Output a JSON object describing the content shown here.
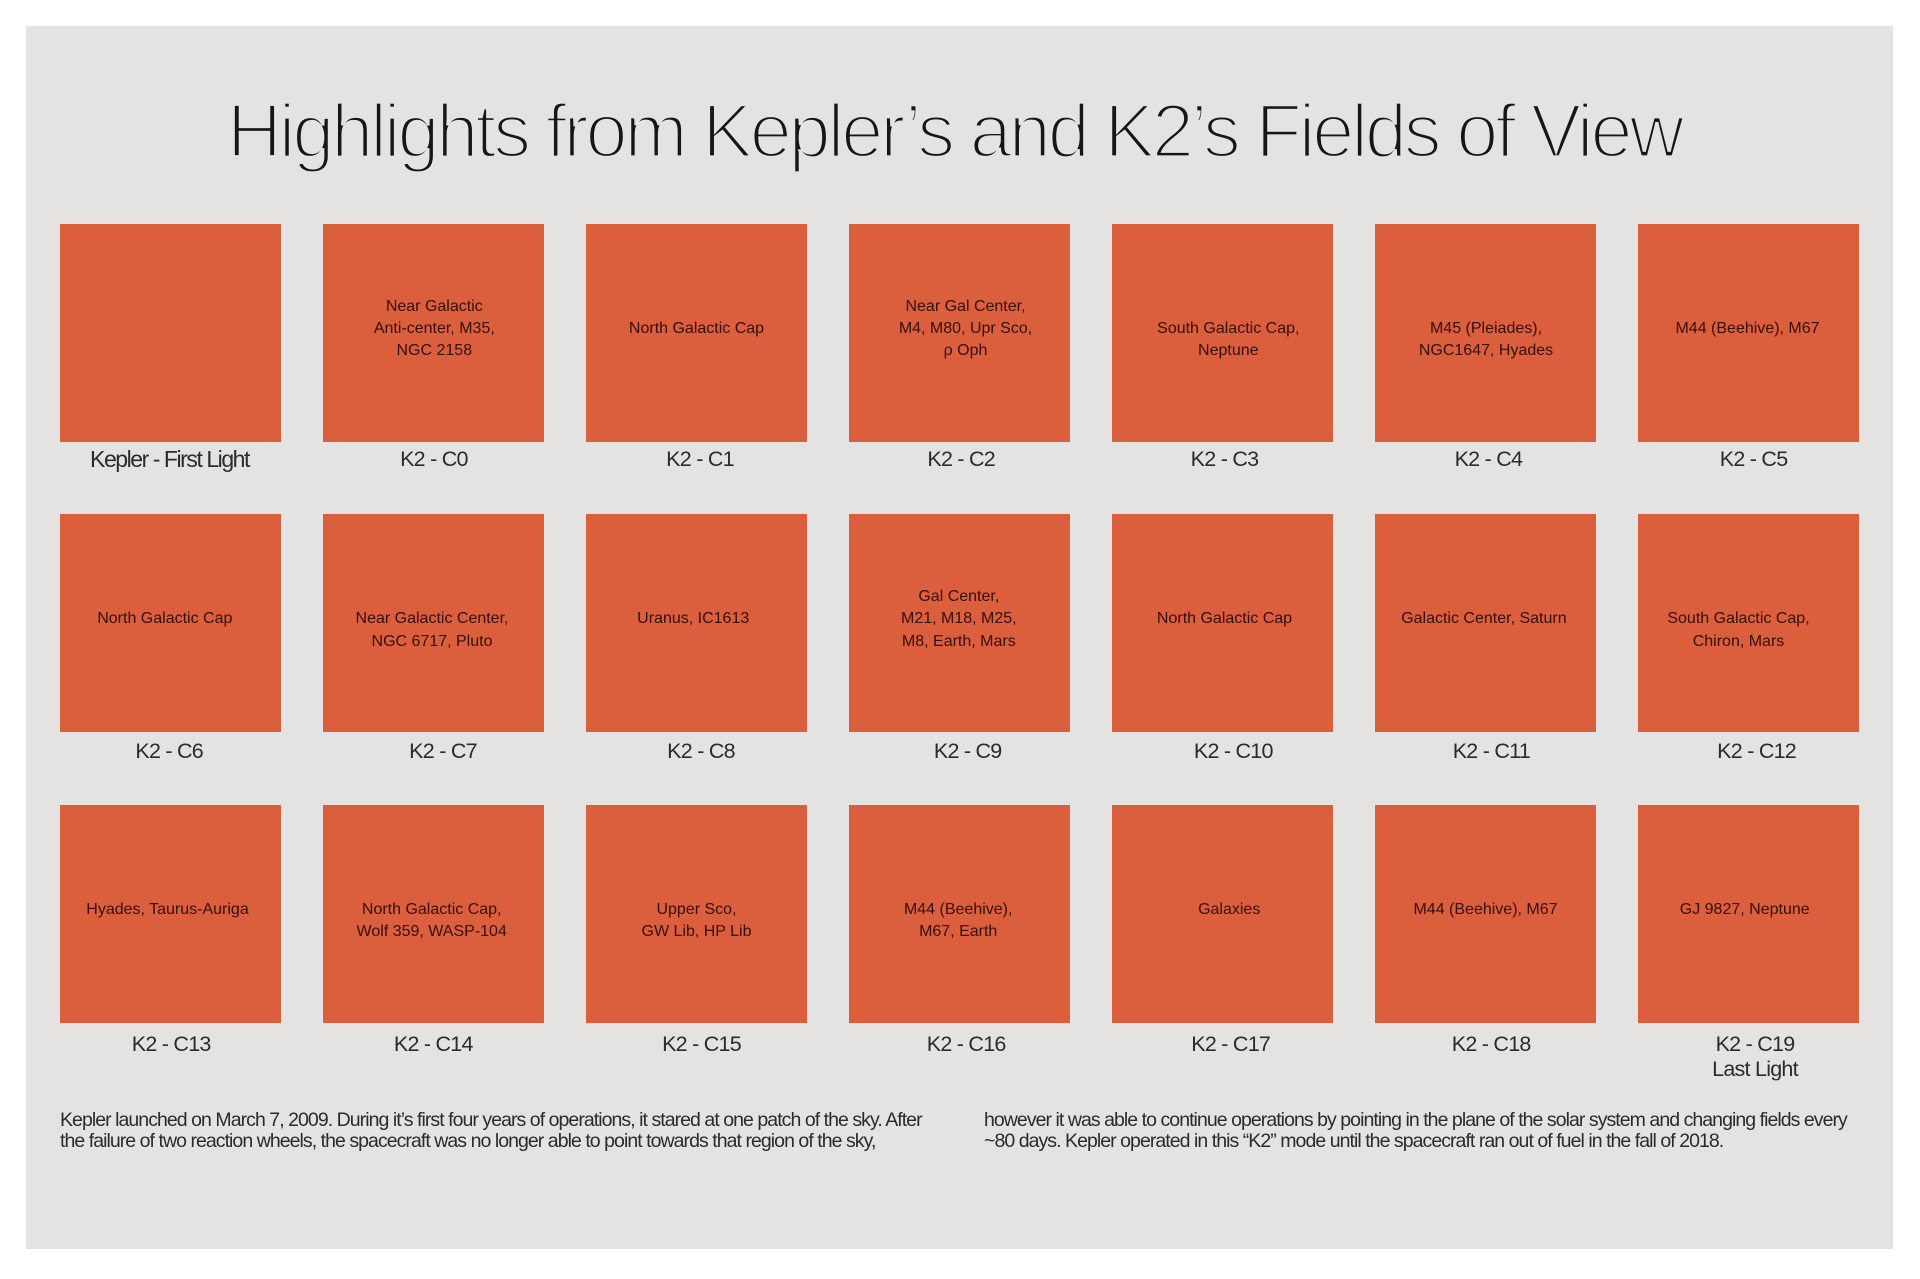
{
  "title": "Highlights from Kepler’s and K2’s Fields of View",
  "colors": {
    "page_background": "#ffffff",
    "panel_background": "#e4e3e2",
    "square_fill": "#dc5f3d",
    "square_text": "#350e06",
    "caption_text": "#2b2b2b",
    "footer_text": "#2b2b2b",
    "title_text": "#161616"
  },
  "grid": {
    "cells": [
      {
        "caption": "Kepler - First Light",
        "lines": []
      },
      {
        "caption": "K2 - C0",
        "lines": [
          "Near Galactic",
          "Anti-center, M35,",
          "NGC 2158"
        ]
      },
      {
        "caption": "K2 - C1",
        "lines": [
          "North Galactic Cap"
        ]
      },
      {
        "caption": "K2 - C2",
        "lines": [
          "Near Gal Center,",
          "M4, M80, Upr Sco,",
          "ρ Oph"
        ]
      },
      {
        "caption": "K2 - C3",
        "lines": [
          "South Galactic Cap,",
          "Neptune"
        ]
      },
      {
        "caption": "K2 - C4",
        "lines": [
          "M45 (Pleiades),",
          "NGC1647, Hyades"
        ]
      },
      {
        "caption": "K2 - C5",
        "lines": [
          "M44 (Beehive), M67"
        ]
      },
      {
        "caption": "K2 - C6",
        "lines": [
          "North Galactic Cap"
        ]
      },
      {
        "caption": "K2 - C7",
        "lines": [
          "Near Galactic Center,",
          "NGC 6717, Pluto"
        ]
      },
      {
        "caption": "K2 - C8",
        "lines": [
          "Uranus, IC1613"
        ]
      },
      {
        "caption": "K2 - C9",
        "lines": [
          "Gal Center,",
          "M21, M18, M25,",
          "M8, Earth, Mars"
        ]
      },
      {
        "caption": "K2 - C10",
        "lines": [
          "North Galactic Cap"
        ]
      },
      {
        "caption": "K2 - C11",
        "lines": [
          "Galactic Center, Saturn"
        ]
      },
      {
        "caption": "K2 - C12",
        "lines": [
          "South Galactic Cap,",
          "Chiron, Mars"
        ]
      },
      {
        "caption": "K2 - C13",
        "lines": [
          "Hyades, Taurus-Auriga"
        ]
      },
      {
        "caption": "K2 - C14",
        "lines": [
          "North Galactic Cap,",
          "Wolf 359, WASP-104"
        ]
      },
      {
        "caption": "K2 - C15",
        "lines": [
          "Upper Sco,",
          "GW Lib, HP Lib"
        ]
      },
      {
        "caption": "K2 - C16",
        "lines": [
          "M44 (Beehive),",
          "M67, Earth"
        ]
      },
      {
        "caption": "K2 - C17",
        "lines": [
          "Galaxies"
        ]
      },
      {
        "caption": "K2 - C18",
        "lines": [
          "M44 (Beehive), M67"
        ]
      },
      {
        "caption": "K2 - C19",
        "caption2": "Last Light",
        "lines": [
          "GJ 9827, Neptune"
        ]
      }
    ]
  },
  "footer": {
    "left": [
      "Kepler launched on March 7, 2009. During it’s first four years of operations, it stared at one patch of the sky. After",
      "the failure of two reaction wheels, the spacecraft was no longer able to point towards that region of the sky,"
    ],
    "right": [
      "however it was able to continue operations by pointing in the plane of the solar system and changing fields every",
      "~80 days. Kepler operated in this “K2” mode until the spacecraft ran out of fuel in the fall of 2018."
    ]
  }
}
